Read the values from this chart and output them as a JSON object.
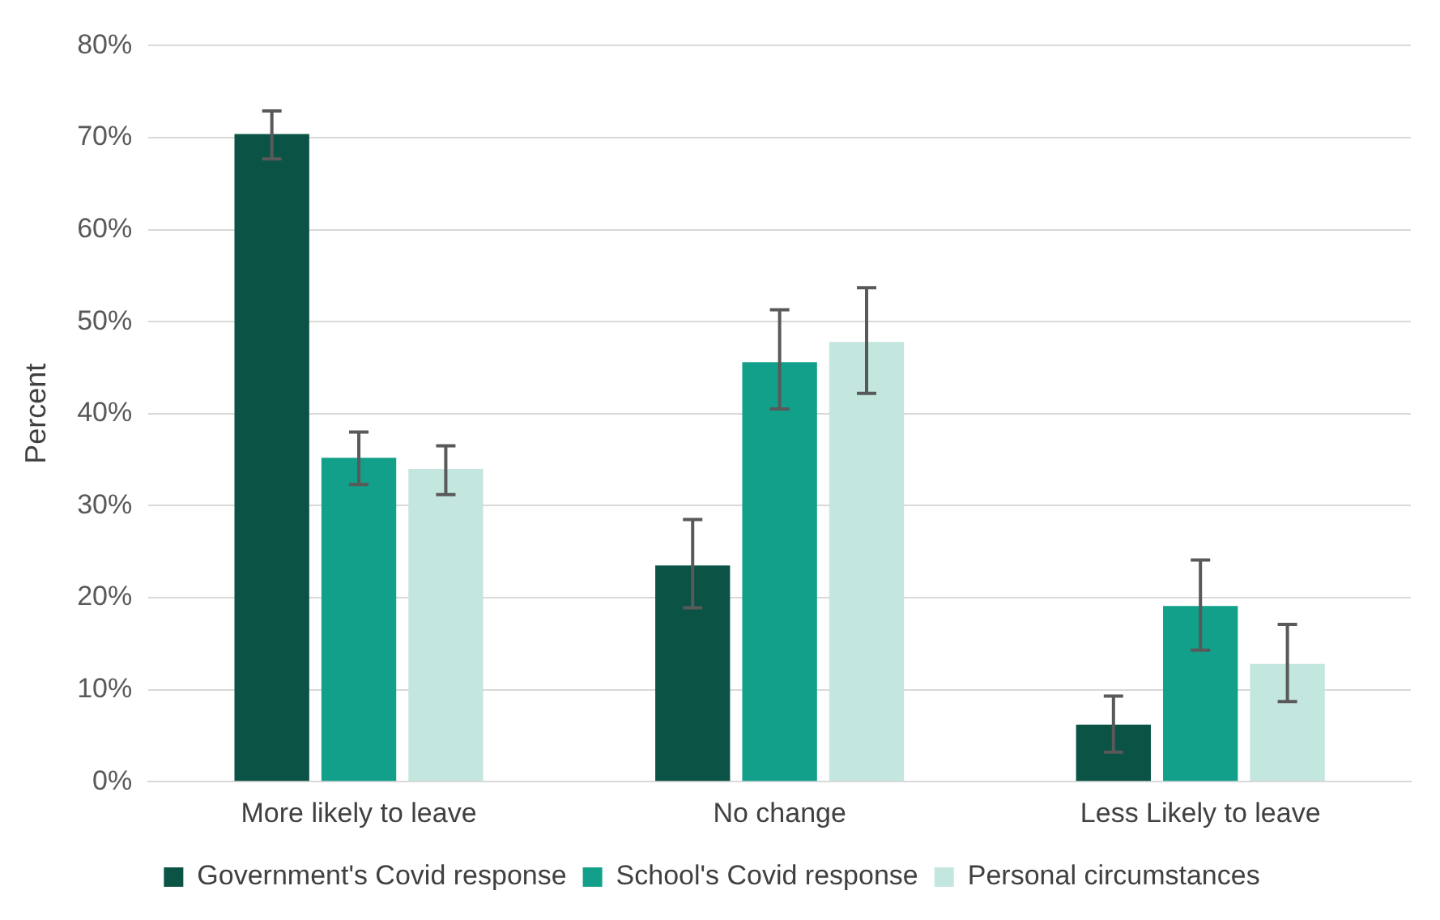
{
  "chart_data": {
    "type": "bar",
    "ylabel": "Percent",
    "categories": [
      "More likely to leave",
      "No change",
      "Less Likely to leave"
    ],
    "series": [
      {
        "name": "Government's Covid response",
        "color": "#0b5345",
        "values": [
          70.4,
          23.5,
          6.2
        ],
        "errors": [
          [
            67.7,
            72.9
          ],
          [
            18.9,
            28.5
          ],
          [
            3.2,
            9.3
          ]
        ]
      },
      {
        "name": "School's Covid response",
        "color": "#13a08a",
        "values": [
          35.2,
          45.6,
          19.1
        ],
        "errors": [
          [
            32.3,
            38.0
          ],
          [
            40.5,
            51.3
          ],
          [
            14.3,
            24.1
          ]
        ]
      },
      {
        "name": "Personal circumstances",
        "color": "#c3e6df",
        "values": [
          34.0,
          47.8,
          12.8
        ],
        "errors": [
          [
            31.2,
            36.5
          ],
          [
            42.2,
            53.7
          ],
          [
            8.7,
            17.1
          ]
        ]
      }
    ],
    "ylim": [
      0,
      80
    ],
    "yticks": [
      {
        "value": 0,
        "label": "0%"
      },
      {
        "value": 10,
        "label": "10%"
      },
      {
        "value": 20,
        "label": "20%"
      },
      {
        "value": 30,
        "label": "30%"
      },
      {
        "value": 40,
        "label": "40%"
      },
      {
        "value": 50,
        "label": "50%"
      },
      {
        "value": 60,
        "label": "60%"
      },
      {
        "value": 70,
        "label": "70%"
      },
      {
        "value": 80,
        "label": "80%"
      }
    ],
    "grid": "y",
    "legend": "bottom"
  }
}
